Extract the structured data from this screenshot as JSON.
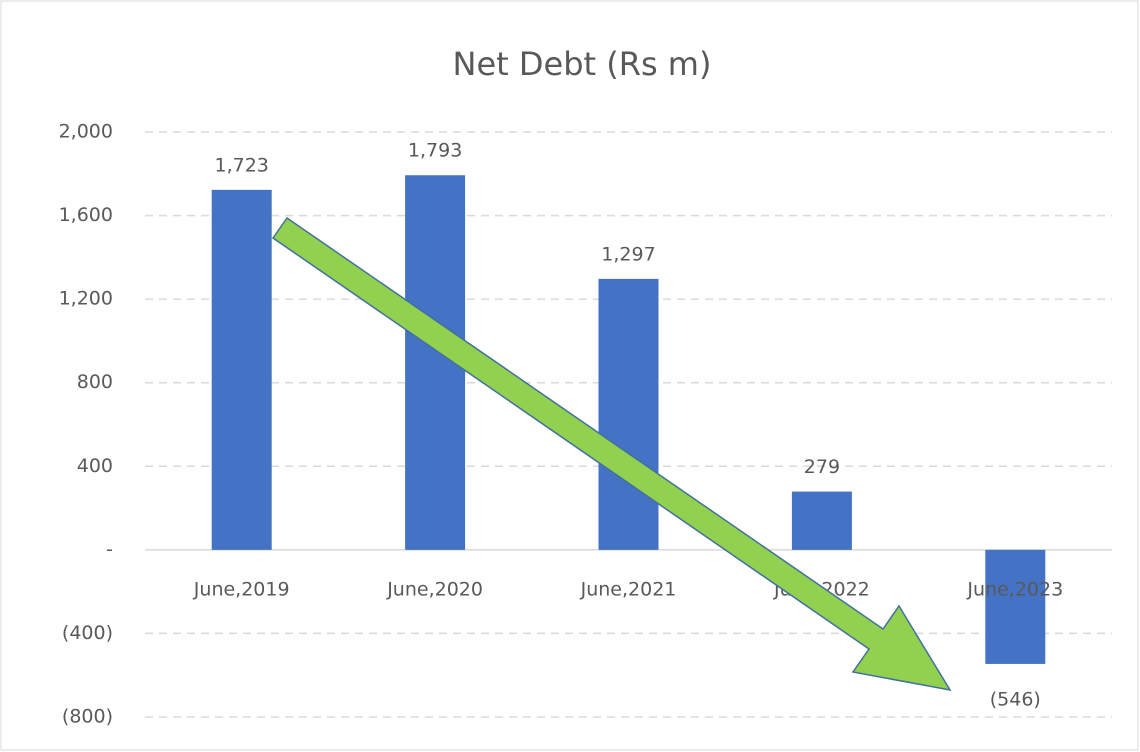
{
  "chart_data": {
    "type": "bar",
    "title": "Net Debt (Rs m)",
    "categories": [
      "June,2019",
      "June,2020",
      "June,2021",
      "June,2022",
      "June,2023"
    ],
    "values": [
      1723,
      1793,
      1297,
      279,
      -546
    ],
    "value_labels": [
      "1,723",
      "1,793",
      "1,297",
      "279",
      "(546)"
    ],
    "color": "#4472c4",
    "ylim": [
      -800,
      2000
    ],
    "yticks": [
      {
        "value": -800,
        "label": "(800)"
      },
      {
        "value": -400,
        "label": "(400)"
      },
      {
        "value": 0,
        "label": "-"
      },
      400,
      800,
      {
        "value": 1200,
        "label": "1,200"
      },
      {
        "value": 1600,
        "label": "1,600"
      },
      {
        "value": 2000,
        "label": "2,000"
      }
    ],
    "grid": true
  }
}
